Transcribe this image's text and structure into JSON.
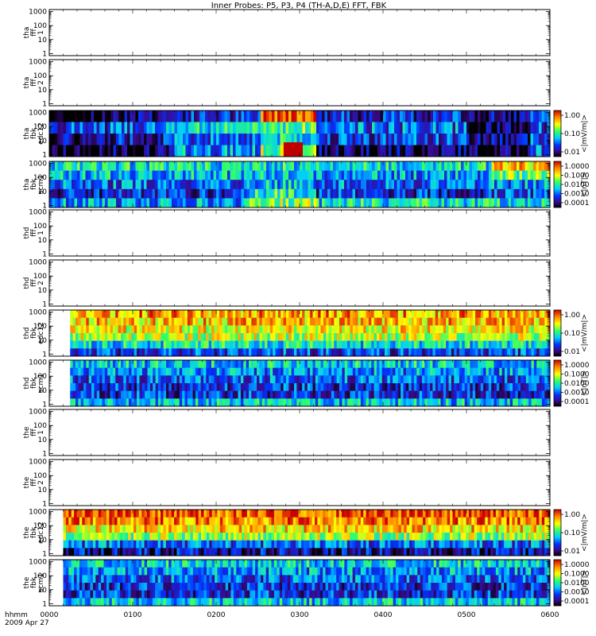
{
  "title": "Inner Probes: P5, P3, P4 (TH-A,D,E) FFT, FBK",
  "x_axis": {
    "row_label": "hhmm",
    "date_label": "2009 Apr 27",
    "ticks": [
      "0000",
      "0100",
      "0200",
      "0300",
      "0400",
      "0500",
      "0600"
    ]
  },
  "y_ticks": [
    "1",
    "10",
    "100",
    "1000"
  ],
  "colorbars": {
    "edc12": {
      "unit": "<|mV/m|>",
      "ticks": [
        "1.00",
        "0.10",
        "0.01"
      ]
    },
    "scm1": {
      "unit": "<|nT|>",
      "ticks": [
        "1.0000",
        "0.1000",
        "0.0100",
        "0.0010",
        "0.0001"
      ]
    }
  },
  "chart_data": {
    "type": "heatmap",
    "title": "Inner Probes: P5, P3, P4 (TH-A,D,E) FFT, FBK",
    "xlim": [
      "00:00",
      "06:00"
    ],
    "ylim": [
      1,
      1000
    ],
    "y_scale": "log",
    "panels": [
      {
        "label": [
          "tha",
          "fff",
          "1"
        ],
        "kind": "empty"
      },
      {
        "label": [
          "tha",
          "fff",
          "2"
        ],
        "kind": "empty"
      },
      {
        "label": [
          "tha",
          "fbk",
          "edc12"
        ],
        "kind": "spectrogram",
        "colorbar": "edc12",
        "data_start_hhmm": "00:00",
        "levels_by_time": [
          [
            0.0,
            0.12,
            [
              [
                1,
                0.0
              ],
              [
                2,
                0.25
              ],
              [
                3,
                0.1
              ],
              [
                4,
                0.0
              ]
            ]
          ],
          [
            0.12,
            0.25,
            [
              [
                1,
                0.15
              ],
              [
                2,
                0.3
              ],
              [
                3,
                0.2
              ],
              [
                4,
                0.05
              ]
            ]
          ],
          [
            0.25,
            0.42,
            [
              [
                1,
                0.2
              ],
              [
                2,
                0.45
              ],
              [
                3,
                0.3
              ],
              [
                4,
                0.35
              ]
            ]
          ],
          [
            0.42,
            0.53,
            [
              [
                1,
                0.95
              ],
              [
                2,
                0.55
              ],
              [
                3,
                0.45
              ],
              [
                4,
                0.6
              ]
            ]
          ],
          [
            0.53,
            0.83,
            [
              [
                1,
                0.2
              ],
              [
                2,
                0.3
              ],
              [
                3,
                0.25
              ],
              [
                4,
                0.1
              ]
            ]
          ],
          [
            0.83,
            0.96,
            [
              [
                1,
                0.1
              ],
              [
                2,
                0.05
              ],
              [
                3,
                0.15
              ],
              [
                4,
                0.05
              ]
            ]
          ],
          [
            0.96,
            1.0,
            [
              [
                1,
                0.2
              ],
              [
                2,
                0.25
              ],
              [
                3,
                0.3
              ],
              [
                4,
                0.3
              ]
            ]
          ]
        ]
      },
      {
        "label": [
          "tha",
          "fbk",
          "scm1"
        ],
        "kind": "spectrogram",
        "colorbar": "scm1",
        "data_start_hhmm": "00:00",
        "levels_by_time": [
          [
            0.0,
            0.4,
            [
              [
                1,
                0.45
              ],
              [
                2,
                0.4
              ],
              [
                3,
                0.3
              ],
              [
                4,
                0.2
              ],
              [
                5,
                0.35
              ]
            ]
          ],
          [
            0.4,
            0.53,
            [
              [
                1,
                0.45
              ],
              [
                2,
                0.42
              ],
              [
                3,
                0.4
              ],
              [
                4,
                0.5
              ],
              [
                5,
                0.6
              ]
            ]
          ],
          [
            0.53,
            0.88,
            [
              [
                1,
                0.45
              ],
              [
                2,
                0.35
              ],
              [
                3,
                0.3
              ],
              [
                4,
                0.22
              ],
              [
                5,
                0.45
              ]
            ]
          ],
          [
            0.88,
            1.0,
            [
              [
                1,
                0.75
              ],
              [
                2,
                0.55
              ],
              [
                3,
                0.35
              ],
              [
                4,
                0.25
              ],
              [
                5,
                0.45
              ]
            ]
          ]
        ]
      },
      {
        "label": [
          "thd",
          "fff",
          "1"
        ],
        "kind": "empty"
      },
      {
        "label": [
          "thd",
          "fff",
          "2"
        ],
        "kind": "empty"
      },
      {
        "label": [
          "thd",
          "fbk",
          "edc12"
        ],
        "kind": "spectrogram",
        "colorbar": "edc12",
        "data_start_hhmm": "00:15",
        "levels_by_time": [
          [
            0.0,
            1.0,
            [
              [
                1,
                0.82
              ],
              [
                2,
                0.78
              ],
              [
                3,
                0.72
              ],
              [
                4,
                0.65
              ],
              [
                5,
                0.45
              ],
              [
                6,
                0.25
              ]
            ]
          ]
        ]
      },
      {
        "label": [
          "thd",
          "fbk",
          "scm1"
        ],
        "kind": "spectrogram",
        "colorbar": "scm1",
        "data_start_hhmm": "00:15",
        "levels_by_time": [
          [
            0.0,
            1.0,
            [
              [
                1,
                0.42
              ],
              [
                2,
                0.35
              ],
              [
                3,
                0.28
              ],
              [
                4,
                0.22
              ],
              [
                5,
                0.22
              ],
              [
                6,
                0.4
              ]
            ]
          ]
        ]
      },
      {
        "label": [
          "the",
          "fff",
          "1"
        ],
        "kind": "empty"
      },
      {
        "label": [
          "the",
          "fff",
          "2"
        ],
        "kind": "empty"
      },
      {
        "label": [
          "the",
          "fbk",
          "edc12"
        ],
        "kind": "spectrogram",
        "colorbar": "edc12",
        "data_start_hhmm": "00:10",
        "levels_by_time": [
          [
            0.0,
            1.0,
            [
              [
                1,
                0.92
              ],
              [
                2,
                0.85
              ],
              [
                3,
                0.75
              ],
              [
                4,
                0.62
              ],
              [
                5,
                0.3
              ],
              [
                6,
                0.15
              ]
            ]
          ]
        ]
      },
      {
        "label": [
          "the",
          "fbk",
          "scm1"
        ],
        "kind": "spectrogram",
        "colorbar": "scm1",
        "data_start_hhmm": "00:10",
        "levels_by_time": [
          [
            0.0,
            1.0,
            [
              [
                1,
                0.42
              ],
              [
                2,
                0.35
              ],
              [
                3,
                0.28
              ],
              [
                4,
                0.22
              ],
              [
                5,
                0.22
              ],
              [
                6,
                0.42
              ]
            ]
          ]
        ]
      }
    ]
  }
}
